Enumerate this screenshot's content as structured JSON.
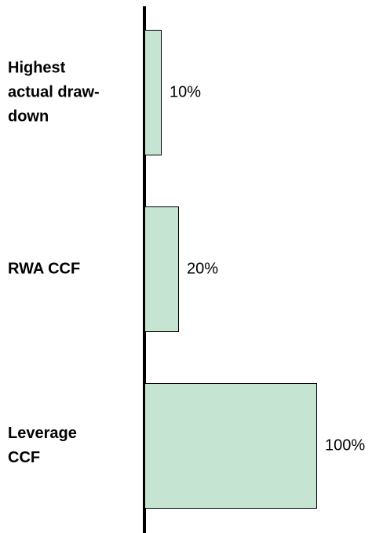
{
  "chart_data": {
    "type": "bar",
    "orientation": "horizontal",
    "categories": [
      "Highest actual draw-down",
      "RWA CCF",
      "Leverage CCF"
    ],
    "values": [
      10,
      20,
      100
    ],
    "value_labels": [
      "10%",
      "20%",
      "100%"
    ],
    "color": "#c6e4d2"
  }
}
